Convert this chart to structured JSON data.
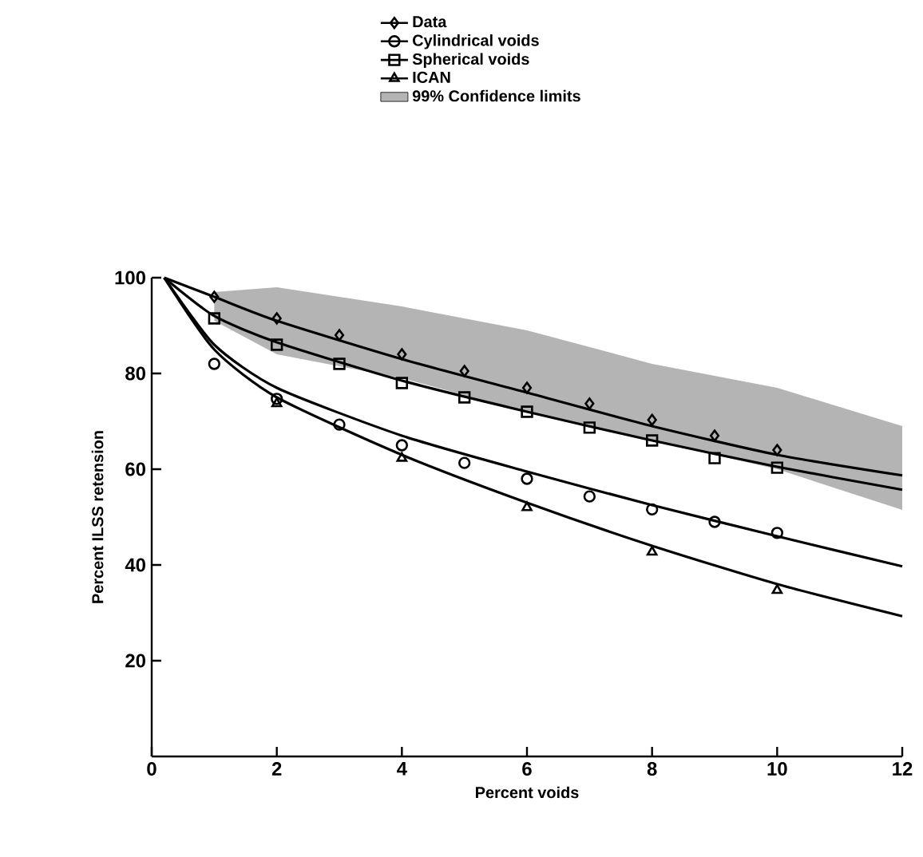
{
  "chart_data": {
    "type": "line",
    "xlabel": "Percent voids",
    "ylabel": "Percent ILSS retension",
    "xlim": [
      0,
      12
    ],
    "ylim": [
      0,
      100
    ],
    "xticks": [
      0,
      2,
      4,
      6,
      8,
      10,
      12
    ],
    "yticks": [
      20,
      40,
      60,
      80,
      100
    ],
    "legend": "top",
    "series": [
      {
        "name": "99% Confidence limits",
        "type": "line",
        "color": "#b4b4b4",
        "x": [
          1,
          2,
          4,
          6,
          8,
          10,
          12
        ],
        "values": [
          null,
          null,
          null,
          null,
          null,
          null,
          null
        ],
        "upper": [
          97,
          98,
          94,
          89,
          82,
          77,
          69
        ],
        "lower": [
          91,
          84,
          79,
          72,
          66,
          60,
          51.5
        ]
      },
      {
        "type": "line",
        "color": "#000000",
        "x": [
          0.2,
          1,
          2,
          4,
          6,
          8,
          10,
          12
        ],
        "values": [
          100,
          96,
          91,
          83,
          76,
          69,
          63,
          58.7
        ]
      },
      {
        "type": "line",
        "color": "#000000",
        "x": [
          0.2,
          1,
          2,
          4,
          6,
          8,
          10,
          12
        ],
        "values": [
          100,
          92,
          86.5,
          78.5,
          72,
          66,
          60.5,
          55.7
        ]
      },
      {
        "type": "line",
        "color": "#000000",
        "x": [
          0.2,
          1,
          2,
          4,
          6,
          8,
          10,
          12
        ],
        "values": [
          100,
          86,
          77,
          67,
          59.5,
          52.5,
          46,
          39.7
        ]
      },
      {
        "type": "line",
        "color": "#000000",
        "x": [
          0.2,
          1,
          2,
          4,
          6,
          8,
          10,
          12
        ],
        "values": [
          100,
          85,
          75,
          63,
          53,
          44,
          36,
          29.3
        ]
      },
      {
        "name": "Data",
        "type": "scatter",
        "marker": "diamond",
        "color": "#000000",
        "x": [
          1,
          2,
          3,
          4,
          5,
          6,
          7,
          8,
          9,
          10
        ],
        "values": [
          96,
          91.5,
          88,
          84,
          80.5,
          77,
          73.7,
          70.3,
          67,
          64
        ]
      },
      {
        "name": "Cylindrical voids",
        "type": "scatter",
        "marker": "circle",
        "color": "#000000",
        "x": [
          1,
          2,
          3,
          4,
          5,
          6,
          7,
          8,
          9,
          10
        ],
        "values": [
          82,
          74.7,
          69.3,
          65,
          61.3,
          58,
          54.3,
          51.6,
          49,
          46.7
        ]
      },
      {
        "name": "Spherical voids",
        "type": "scatter",
        "marker": "square",
        "color": "#000000",
        "x": [
          1,
          2,
          3,
          4,
          5,
          6,
          7,
          8,
          9,
          10
        ],
        "values": [
          91.5,
          86,
          82,
          78,
          75,
          72,
          68.7,
          66,
          62.3,
          60.3
        ]
      },
      {
        "name": "ICAN",
        "type": "scatter",
        "marker": "triangle",
        "color": "#000000",
        "x": [
          2,
          4,
          6,
          8,
          10
        ],
        "values": [
          73.7,
          62.3,
          52,
          42.7,
          34.7
        ]
      }
    ]
  }
}
